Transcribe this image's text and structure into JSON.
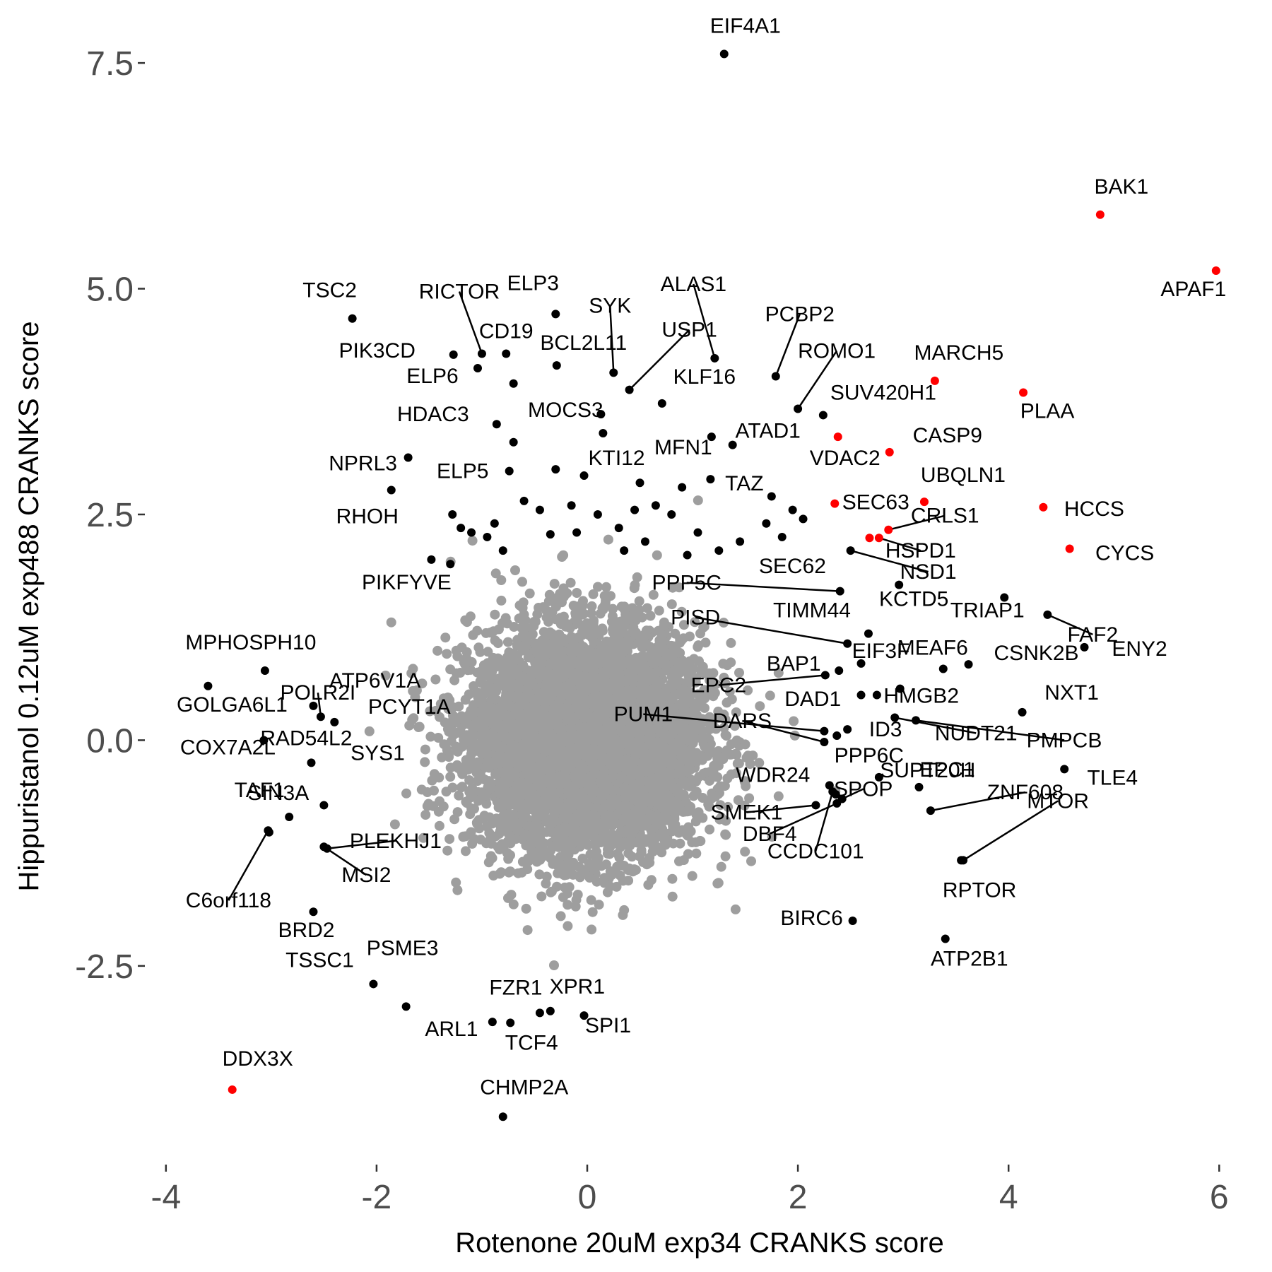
{
  "chart_data": {
    "type": "scatter",
    "xlabel": "Rotenone 20uM exp34 CRANKS score",
    "ylabel": "Hippuristanol 0.12uM exp488 CRANKS score",
    "xlim": [
      -4.2,
      6.3
    ],
    "ylim": [
      -4.7,
      7.9
    ],
    "xticks": [
      -4,
      -2,
      0,
      2,
      4,
      6
    ],
    "xtick_labels": [
      "-4",
      "-2",
      "0",
      "2",
      "4",
      "6"
    ],
    "yticks": [
      -2.5,
      0,
      2.5,
      5,
      7.5
    ],
    "ytick_labels": [
      "-2.5",
      "0.0",
      "2.5",
      "5.0",
      "7.5"
    ],
    "grid": false,
    "legend": "none",
    "colors": {
      "background_points": "#9e9e9e",
      "highlight": "#ff0000",
      "labeled": "#000000"
    },
    "background_cloud": {
      "center": [
        0,
        0
      ],
      "sd_x": 0.55,
      "sd_y": 0.62,
      "approx_points": 6000
    },
    "points": [
      {
        "label": "EIF4A1",
        "x": 1.3,
        "y": 7.6,
        "color": "black"
      },
      {
        "label": "BAK1",
        "x": 4.87,
        "y": 5.82,
        "color": "red"
      },
      {
        "label": "APAF1",
        "x": 5.97,
        "y": 5.2,
        "color": "red"
      },
      {
        "label": "TSC2",
        "x": -2.23,
        "y": 4.67,
        "color": "black"
      },
      {
        "label": "RICTOR",
        "x": -1.0,
        "y": 4.28,
        "color": "black"
      },
      {
        "label": "ELP3",
        "x": -0.3,
        "y": 4.72,
        "color": "black"
      },
      {
        "label": "SYK",
        "x": 0.25,
        "y": 4.07,
        "color": "black"
      },
      {
        "label": "ALAS1",
        "x": 1.21,
        "y": 4.23,
        "color": "black"
      },
      {
        "label": "USP1",
        "x": 0.4,
        "y": 3.88,
        "color": "black"
      },
      {
        "label": "PIK3CD",
        "x": -1.27,
        "y": 4.27,
        "color": "black"
      },
      {
        "label": "CD19",
        "x": -0.77,
        "y": 4.28,
        "color": "black"
      },
      {
        "label": "BCL2L11",
        "x": -0.29,
        "y": 4.15,
        "color": "black"
      },
      {
        "label": "PCBP2",
        "x": 1.79,
        "y": 4.03,
        "color": "black"
      },
      {
        "label": "MARCH5",
        "x": 3.3,
        "y": 3.98,
        "color": "red"
      },
      {
        "label": "PLAA",
        "x": 4.14,
        "y": 3.85,
        "color": "red"
      },
      {
        "label": "ELP6",
        "x": -1.04,
        "y": 4.12,
        "color": "black"
      },
      {
        "label": "KLF16",
        "x": 0.71,
        "y": 3.73,
        "color": "black"
      },
      {
        "label": "ROMO1",
        "x": 2.0,
        "y": 3.67,
        "color": "black"
      },
      {
        "label": "SUV420H1",
        "x": 2.24,
        "y": 3.6,
        "color": "black"
      },
      {
        "label": "MOCS3",
        "x": 0.13,
        "y": 3.61,
        "color": "black"
      },
      {
        "label": "HDAC3",
        "x": -0.86,
        "y": 3.5,
        "color": "black"
      },
      {
        "label": "MFN1",
        "x": 1.18,
        "y": 3.36,
        "color": "black"
      },
      {
        "label": "ATAD1",
        "x": 1.38,
        "y": 3.27,
        "color": "black"
      },
      {
        "label": "VDAC2",
        "x": 2.38,
        "y": 3.36,
        "color": "red"
      },
      {
        "label": "CASP9",
        "x": 2.87,
        "y": 3.19,
        "color": "red"
      },
      {
        "label": "NPRL3",
        "x": -1.7,
        "y": 3.13,
        "color": "black"
      },
      {
        "label": "ELP5",
        "x": -0.74,
        "y": 2.98,
        "color": "black"
      },
      {
        "label": "KTI12",
        "x": -0.03,
        "y": 2.93,
        "color": "black"
      },
      {
        "label": "RHOH",
        "x": -1.86,
        "y": 2.77,
        "color": "black"
      },
      {
        "label": "TAZ",
        "x": 1.17,
        "y": 2.89,
        "color": "black"
      },
      {
        "label": "UBQLN1",
        "x": 3.2,
        "y": 2.64,
        "color": "red"
      },
      {
        "label": "SEC63",
        "x": 2.35,
        "y": 2.62,
        "color": "red"
      },
      {
        "label": "HCCS",
        "x": 4.33,
        "y": 2.58,
        "color": "red"
      },
      {
        "label": "CRLS1",
        "x": 2.86,
        "y": 2.33,
        "color": "red"
      },
      {
        "label": "SEC62",
        "x": 2.68,
        "y": 2.24,
        "color": "red"
      },
      {
        "label": "CYCS",
        "x": 4.58,
        "y": 2.12,
        "color": "red"
      },
      {
        "label": "HSPD1",
        "x": 2.77,
        "y": 2.24,
        "color": "red"
      },
      {
        "label": "NSD1",
        "x": 2.5,
        "y": 2.1,
        "color": "black"
      },
      {
        "label": "PIKFYVE",
        "x": -1.48,
        "y": 2.0,
        "color": "black"
      },
      {
        "label": "PPP5C",
        "x": 2.4,
        "y": 1.65,
        "color": "black"
      },
      {
        "label": "KCTD5",
        "x": 2.96,
        "y": 1.72,
        "color": "black"
      },
      {
        "label": "TRIAP1",
        "x": 3.96,
        "y": 1.58,
        "color": "black"
      },
      {
        "label": "FAF2",
        "x": 4.37,
        "y": 1.39,
        "color": "black"
      },
      {
        "label": "TIMM44",
        "x": 2.67,
        "y": 1.18,
        "color": "black"
      },
      {
        "label": "PISD",
        "x": 2.47,
        "y": 1.07,
        "color": "black"
      },
      {
        "label": "ENY2",
        "x": 4.72,
        "y": 1.03,
        "color": "black"
      },
      {
        "label": "MPHOSPH10",
        "x": -3.06,
        "y": 0.77,
        "color": "black"
      },
      {
        "label": "MEAF6",
        "x": 3.38,
        "y": 0.79,
        "color": "black"
      },
      {
        "label": "CSNK2B",
        "x": 3.62,
        "y": 0.84,
        "color": "black"
      },
      {
        "label": "BAP1",
        "x": 2.39,
        "y": 0.77,
        "color": "black"
      },
      {
        "label": "EIF3F",
        "x": 2.6,
        "y": 0.85,
        "color": "black"
      },
      {
        "label": "GOLGA6L1",
        "x": -3.6,
        "y": 0.6,
        "color": "black"
      },
      {
        "label": "HMGB2",
        "x": 2.97,
        "y": 0.57,
        "color": "black"
      },
      {
        "label": "NXT1",
        "x": 4.13,
        "y": 0.31,
        "color": "black"
      },
      {
        "label": "ATP6V1A",
        "x": -2.6,
        "y": 0.38,
        "color": "black"
      },
      {
        "label": "EPC2",
        "x": 2.26,
        "y": 0.72,
        "color": "black"
      },
      {
        "label": "PUM1",
        "x": 2.25,
        "y": 0.1,
        "color": "black"
      },
      {
        "label": "DAD1",
        "x": 2.37,
        "y": 0.05,
        "color": "black"
      },
      {
        "label": "POLR2I",
        "x": -2.53,
        "y": 0.26,
        "color": "black"
      },
      {
        "label": "PCYT1A",
        "x": -2.4,
        "y": 0.2,
        "color": "black"
      },
      {
        "label": "NUDT21",
        "x": 2.92,
        "y": 0.25,
        "color": "black"
      },
      {
        "label": "PMPCB",
        "x": 3.12,
        "y": 0.22,
        "color": "black"
      },
      {
        "label": "COX7A2L",
        "x": -3.07,
        "y": 0.0,
        "color": "black"
      },
      {
        "label": "ID3",
        "x": 2.47,
        "y": 0.12,
        "color": "black"
      },
      {
        "label": "DARS",
        "x": 2.25,
        "y": -0.02,
        "color": "black"
      },
      {
        "label": "SYS1",
        "x": -2.62,
        "y": -0.25,
        "color": "black"
      },
      {
        "label": "TLE4",
        "x": 4.53,
        "y": -0.32,
        "color": "black"
      },
      {
        "label": "PPP6C",
        "x": 2.77,
        "y": -0.41,
        "color": "black"
      },
      {
        "label": "WDR24",
        "x": 2.3,
        "y": -0.5,
        "color": "black"
      },
      {
        "label": "EPC1",
        "x": 3.15,
        "y": -0.52,
        "color": "black"
      },
      {
        "label": "TAF1",
        "x": -2.83,
        "y": -0.85,
        "color": "black"
      },
      {
        "label": "RAD54L2",
        "x": -2.5,
        "y": -0.72,
        "color": "black"
      },
      {
        "label": "ZNF608",
        "x": 3.26,
        "y": -0.78,
        "color": "black"
      },
      {
        "label": "SMEK1",
        "x": 2.17,
        "y": -0.72,
        "color": "black"
      },
      {
        "label": "SPOP",
        "x": 2.42,
        "y": -0.65,
        "color": "black"
      },
      {
        "label": "SUPT20H",
        "x": 2.36,
        "y": -0.6,
        "color": "black"
      },
      {
        "label": "MTOR",
        "x": 3.57,
        "y": -1.33,
        "color": "black"
      },
      {
        "label": "SIN3A",
        "x": -3.02,
        "y": -1.02,
        "color": "black"
      },
      {
        "label": "PLEKHJ1",
        "x": -2.47,
        "y": -1.2,
        "color": "black"
      },
      {
        "label": "DBF4",
        "x": 2.37,
        "y": -0.7,
        "color": "black"
      },
      {
        "label": "CCDC101",
        "x": 2.33,
        "y": -0.57,
        "color": "black"
      },
      {
        "label": "C6orf118",
        "x": -3.03,
        "y": -1.0,
        "color": "black"
      },
      {
        "label": "MSI2",
        "x": -2.5,
        "y": -1.18,
        "color": "black"
      },
      {
        "label": "RPTOR",
        "x": 3.55,
        "y": -1.33,
        "color": "black"
      },
      {
        "label": "BRD2",
        "x": -2.6,
        "y": -1.9,
        "color": "black"
      },
      {
        "label": "BIRC6",
        "x": 2.52,
        "y": -2.0,
        "color": "black"
      },
      {
        "label": "ATP2B1",
        "x": 3.4,
        "y": -2.2,
        "color": "black"
      },
      {
        "label": "PSME3",
        "x": -1.72,
        "y": -2.95,
        "color": "black"
      },
      {
        "label": "TSSC1",
        "x": -2.03,
        "y": -2.7,
        "color": "black"
      },
      {
        "label": "FZR1",
        "x": -0.45,
        "y": -3.02,
        "color": "black"
      },
      {
        "label": "XPR1",
        "x": -0.35,
        "y": -3.0,
        "color": "black"
      },
      {
        "label": "ARL1",
        "x": -0.9,
        "y": -3.12,
        "color": "black"
      },
      {
        "label": "TCF4",
        "x": -0.73,
        "y": -3.13,
        "color": "black"
      },
      {
        "label": "SPI1",
        "x": -0.03,
        "y": -3.05,
        "color": "black"
      },
      {
        "label": "DDX3X",
        "x": -3.37,
        "y": -3.87,
        "color": "red"
      },
      {
        "label": "CHMP2A",
        "x": -0.8,
        "y": -4.17,
        "color": "black"
      }
    ],
    "unlabeled_points": [
      {
        "x": -1.28,
        "y": 2.5,
        "color": "black"
      },
      {
        "x": -1.1,
        "y": 2.3,
        "color": "black"
      },
      {
        "x": -0.95,
        "y": 2.25,
        "color": "black"
      },
      {
        "x": -0.88,
        "y": 2.4,
        "color": "black"
      },
      {
        "x": -0.6,
        "y": 2.65,
        "color": "black"
      },
      {
        "x": -0.45,
        "y": 2.55,
        "color": "black"
      },
      {
        "x": -0.35,
        "y": 2.28,
        "color": "black"
      },
      {
        "x": -0.15,
        "y": 2.6,
        "color": "black"
      },
      {
        "x": 0.1,
        "y": 2.5,
        "color": "black"
      },
      {
        "x": 0.3,
        "y": 2.35,
        "color": "black"
      },
      {
        "x": 0.45,
        "y": 2.55,
        "color": "black"
      },
      {
        "x": 0.55,
        "y": 2.2,
        "color": "black"
      },
      {
        "x": 0.8,
        "y": 2.5,
        "color": "black"
      },
      {
        "x": 0.95,
        "y": 2.05,
        "color": "black"
      },
      {
        "x": 1.05,
        "y": 2.3,
        "color": "black"
      },
      {
        "x": 1.25,
        "y": 2.1,
        "color": "black"
      },
      {
        "x": 1.45,
        "y": 2.2,
        "color": "black"
      },
      {
        "x": 1.7,
        "y": 2.4,
        "color": "black"
      },
      {
        "x": 1.95,
        "y": 2.55,
        "color": "black"
      },
      {
        "x": 2.05,
        "y": 2.45,
        "color": "black"
      },
      {
        "x": -0.7,
        "y": 3.3,
        "color": "black"
      },
      {
        "x": -0.3,
        "y": 3.0,
        "color": "black"
      },
      {
        "x": 0.5,
        "y": 2.85,
        "color": "black"
      },
      {
        "x": 0.9,
        "y": 2.8,
        "color": "black"
      },
      {
        "x": -1.3,
        "y": 1.95,
        "color": "black"
      },
      {
        "x": -1.2,
        "y": 2.35,
        "color": "black"
      },
      {
        "x": -0.1,
        "y": 2.3,
        "color": "black"
      },
      {
        "x": 0.65,
        "y": 2.6,
        "color": "black"
      },
      {
        "x": 2.75,
        "y": 0.5,
        "color": "black"
      },
      {
        "x": 2.6,
        "y": 0.5,
        "color": "black"
      },
      {
        "x": 1.75,
        "y": 2.7,
        "color": "black"
      },
      {
        "x": 1.85,
        "y": 2.25,
        "color": "black"
      },
      {
        "x": 0.35,
        "y": 2.1,
        "color": "black"
      },
      {
        "x": -0.8,
        "y": 2.1,
        "color": "black"
      },
      {
        "x": -0.7,
        "y": 3.95,
        "color": "black"
      },
      {
        "x": 0.15,
        "y": 3.4,
        "color": "black"
      }
    ]
  }
}
